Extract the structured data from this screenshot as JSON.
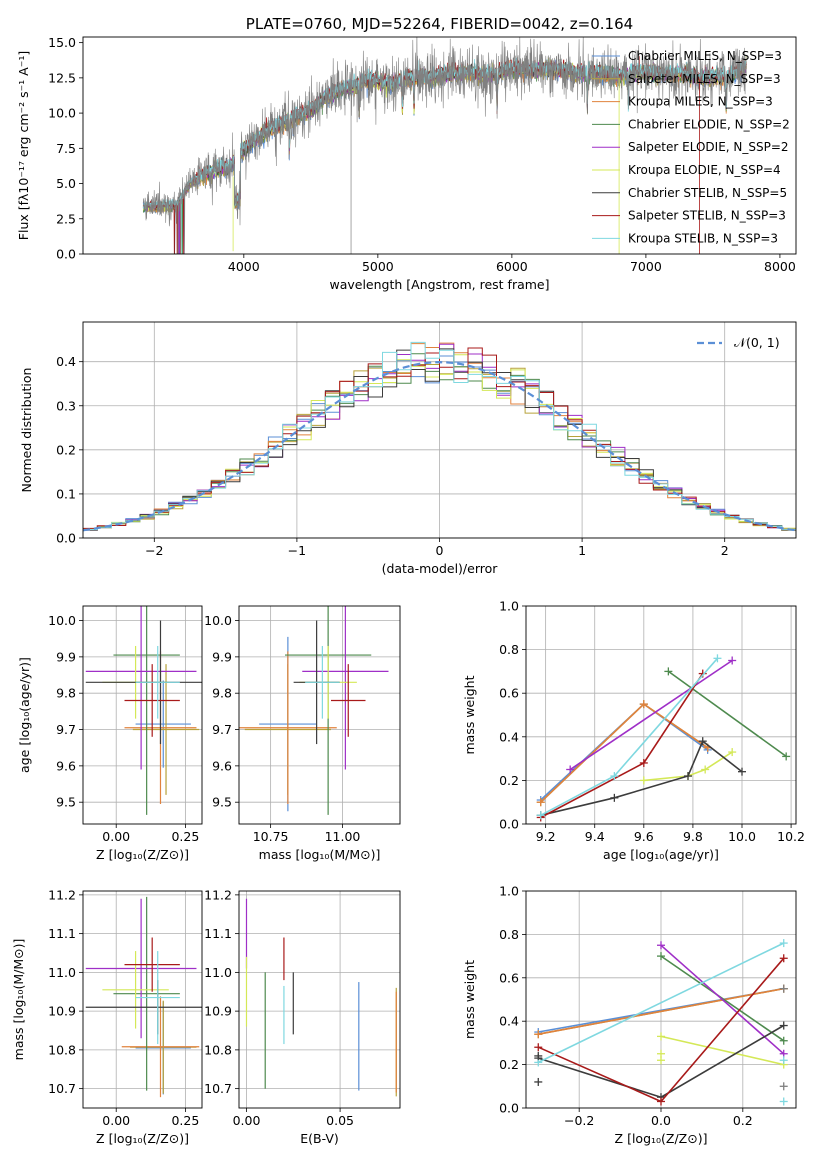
{
  "chart_data": [
    {
      "type": "line",
      "title": "PLATE=0760, MJD=52264, FIBERID=0042, z=0.164",
      "xlabel": "wavelength [Angstrom, rest frame]",
      "ylabel": "Flux [fλ10⁻¹⁷ erg cm⁻² s⁻¹ A⁻¹]",
      "xlim": [
        2800,
        8120
      ],
      "ylim": [
        0,
        15.4
      ],
      "xticks": [
        4000,
        5000,
        6000,
        7000,
        8000
      ],
      "yticks": [
        0.0,
        2.5,
        5.0,
        7.5,
        10.0,
        12.5,
        15.0
      ],
      "ytick_labels": [
        "0.0",
        "2.5",
        "5.0",
        "7.5",
        "10.0",
        "12.5",
        "15.0"
      ],
      "grid": false,
      "legend_position": "right",
      "data_spectrum": {
        "name": "",
        "color": "#808080",
        "x": [
          3250,
          3400,
          3500,
          3600,
          3700,
          3800,
          3900,
          4000,
          4100,
          4200,
          4300,
          4400,
          4500,
          4600,
          4700,
          4800,
          4900,
          5000,
          5100,
          5200,
          5300,
          5400,
          5500,
          5600,
          5700,
          5800,
          5900,
          6000,
          6100,
          6200,
          6300,
          6400,
          6500,
          6600,
          6700,
          6800,
          6900,
          7000,
          7100,
          7200,
          7300,
          7400,
          7500,
          7600,
          7700,
          7750
        ],
        "y": [
          3.3,
          3.4,
          3.4,
          5.0,
          5.6,
          6.0,
          6.2,
          7.4,
          8.2,
          8.9,
          9.3,
          9.8,
          10.2,
          11.0,
          11.6,
          11.8,
          12.3,
          12.3,
          12.0,
          12.4,
          12.6,
          12.5,
          12.8,
          12.8,
          12.9,
          12.7,
          12.8,
          13.2,
          13.0,
          13.1,
          13.1,
          13.0,
          12.8,
          12.9,
          12.8,
          12.6,
          12.9,
          12.9,
          12.8,
          12.7,
          12.8,
          12.4,
          12.6,
          12.5,
          13.0,
          13.4
        ]
      },
      "series": [
        {
          "name": "Chabrier MILES, N_SSP=3",
          "color": "#5b8fd6"
        },
        {
          "name": "Salpeter MILES, N_SSP=3",
          "color": "#b7a23a"
        },
        {
          "name": "Kroupa MILES, N_SSP=3",
          "color": "#e0823d"
        },
        {
          "name": "Chabrier ELODIE, N_SSP=2",
          "color": "#4e8a4e"
        },
        {
          "name": "Salpeter ELODIE, N_SSP=2",
          "color": "#9f2fc7"
        },
        {
          "name": "Kroupa ELODIE, N_SSP=4",
          "color": "#d4e857"
        },
        {
          "name": "Chabrier STELIB, N_SSP=5",
          "color": "#3c3c3c"
        },
        {
          "name": "Salpeter STELIB, N_SSP=3",
          "color": "#a81a1a"
        },
        {
          "name": "Kroupa STELIB, N_SSP=3",
          "color": "#7fd8e0"
        }
      ]
    },
    {
      "type": "line",
      "title": "",
      "xlabel": "(data-model)/error",
      "ylabel": "Normed distribution",
      "xlim": [
        -2.5,
        2.5
      ],
      "ylim": [
        0,
        0.49
      ],
      "xticks": [
        -2,
        -1,
        0,
        1,
        2
      ],
      "xtick_labels": [
        "−2",
        "−1",
        "0",
        "1",
        "2"
      ],
      "yticks": [
        0.0,
        0.1,
        0.2,
        0.3,
        0.4
      ],
      "ytick_labels": [
        "0.0",
        "0.1",
        "0.2",
        "0.3",
        "0.4"
      ],
      "grid": true,
      "legend_position": "top-right",
      "gaussian": {
        "name": "𝒩(0, 1)",
        "color": "#5b8fd6",
        "mean": 0,
        "std": 1
      },
      "hist_bin_width": 0.1
    },
    {
      "type": "scatter",
      "title": "",
      "xlabel": "Z [log₁₀(Z/Z⊙)]",
      "ylabel": "age  [log₁₀(age/yr)]",
      "xlim": [
        -0.12,
        0.31
      ],
      "ylim": [
        9.44,
        10.04
      ],
      "xticks": [
        0.0,
        0.25
      ],
      "xtick_labels": [
        "0.00",
        "0.25"
      ],
      "yticks": [
        9.5,
        9.6,
        9.7,
        9.8,
        9.9,
        10.0
      ],
      "ytick_labels": [
        "9.5",
        "9.6",
        "9.7",
        "9.8",
        "9.9",
        "10.0"
      ],
      "grid": true,
      "crosses": [
        {
          "color": "#5b8fd6",
          "x": 0.17,
          "xerr": 0.1,
          "y": 9.715,
          "yerr": 0.12
        },
        {
          "color": "#b7a23a",
          "x": 0.18,
          "xerr": 0.12,
          "y": 9.7,
          "yerr": 0.18
        },
        {
          "color": "#e0823d",
          "x": 0.16,
          "xerr": 0.13,
          "y": 9.705,
          "yerr": 0.21
        },
        {
          "color": "#4e8a4e",
          "x": 0.11,
          "xerr": 0.12,
          "y": 9.905,
          "yerr": 0.44
        },
        {
          "color": "#9f2fc7",
          "x": 0.09,
          "xerr": 0.2,
          "y": 9.86,
          "yerr": 0.27
        },
        {
          "color": "#d4e857",
          "x": 0.07,
          "xerr": 0.12,
          "y": 9.83,
          "yerr": 0.1
        },
        {
          "color": "#3c3c3c",
          "x": 0.16,
          "xerr": 0.27,
          "y": 9.83,
          "yerr": 0.17
        },
        {
          "color": "#a81a1a",
          "x": 0.13,
          "xerr": 0.1,
          "y": 9.78,
          "yerr": 0.1
        },
        {
          "color": "#7fd8e0",
          "x": 0.15,
          "xerr": 0.08,
          "y": 9.83,
          "yerr": 0.1
        }
      ]
    },
    {
      "type": "scatter",
      "title": "",
      "xlabel": "mass [log₁₀(M/M⊙)]",
      "ylabel": "",
      "xlim": [
        10.64,
        11.2
      ],
      "ylim": [
        9.44,
        10.04
      ],
      "xticks": [
        10.75,
        11.0
      ],
      "xtick_labels": [
        "10.75",
        "11.00"
      ],
      "yticks": [
        9.5,
        9.6,
        9.7,
        9.8,
        9.9,
        10.0
      ],
      "ytick_labels": [
        "9.5",
        "9.6",
        "9.7",
        "9.8",
        "9.9",
        "10.0"
      ],
      "grid": true,
      "crosses": [
        {
          "color": "#5b8fd6",
          "x": 10.81,
          "xerr": 0.1,
          "y": 9.715,
          "yerr": 0.24
        },
        {
          "color": "#b7a23a",
          "x": 10.81,
          "xerr": 0.15,
          "y": 9.7,
          "yerr": 0.18
        },
        {
          "color": "#e0823d",
          "x": 10.81,
          "xerr": 0.17,
          "y": 9.705,
          "yerr": 0.21
        },
        {
          "color": "#4e8a4e",
          "x": 10.95,
          "xerr": 0.15,
          "y": 9.905,
          "yerr": 0.44
        },
        {
          "color": "#9f2fc7",
          "x": 11.01,
          "xerr": 0.15,
          "y": 9.86,
          "yerr": 0.27
        },
        {
          "color": "#d4e857",
          "x": 10.95,
          "xerr": 0.1,
          "y": 9.83,
          "yerr": 0.1
        },
        {
          "color": "#3c3c3c",
          "x": 10.91,
          "xerr": 0.08,
          "y": 9.83,
          "yerr": 0.17
        },
        {
          "color": "#a81a1a",
          "x": 11.02,
          "xerr": 0.06,
          "y": 9.78,
          "yerr": 0.1
        },
        {
          "color": "#7fd8e0",
          "x": 10.93,
          "xerr": 0.06,
          "y": 9.83,
          "yerr": 0.1
        }
      ]
    },
    {
      "type": "line",
      "title": "",
      "xlabel": "age  [log₁₀(age/yr)]",
      "ylabel": "mass weight",
      "xlim": [
        9.12,
        10.22
      ],
      "ylim": [
        0.0,
        1.0
      ],
      "xticks": [
        9.2,
        9.4,
        9.6,
        9.8,
        10.0,
        10.2
      ],
      "xtick_labels": [
        "9.2",
        "9.4",
        "9.6",
        "9.8",
        "10.0",
        "10.2"
      ],
      "yticks": [
        0.0,
        0.2,
        0.4,
        0.6,
        0.8,
        1.0
      ],
      "ytick_labels": [
        "0.0",
        "0.2",
        "0.4",
        "0.6",
        "0.8",
        "1.0"
      ],
      "grid": true,
      "series": [
        {
          "color": "#5b8fd6",
          "x": [
            9.18,
            9.6,
            9.86
          ],
          "y": [
            0.11,
            0.55,
            0.34
          ]
        },
        {
          "color": "#b7a23a",
          "x": [
            9.18,
            9.6,
            9.86
          ],
          "y": [
            0.1,
            0.55,
            0.35
          ]
        },
        {
          "color": "#e0823d",
          "x": [
            9.18,
            9.6,
            9.86
          ],
          "y": [
            0.1,
            0.55,
            0.35
          ]
        },
        {
          "color": "#4e8a4e",
          "x": [
            9.7,
            10.18
          ],
          "y": [
            0.7,
            0.31
          ]
        },
        {
          "color": "#9f2fc7",
          "x": [
            9.3,
            9.96
          ],
          "y": [
            0.25,
            0.75
          ]
        },
        {
          "color": "#d4e857",
          "x": [
            9.6,
            9.78,
            9.85,
            9.96
          ],
          "y": [
            0.2,
            0.22,
            0.25,
            0.33
          ]
        },
        {
          "color": "#3c3c3c",
          "x": [
            9.18,
            9.48,
            9.78,
            9.84,
            10.0
          ],
          "y": [
            0.04,
            0.12,
            0.22,
            0.38,
            0.24
          ]
        },
        {
          "color": "#a81a1a",
          "x": [
            9.18,
            9.6,
            9.84
          ],
          "y": [
            0.03,
            0.28,
            0.69
          ]
        },
        {
          "color": "#7fd8e0",
          "x": [
            9.18,
            9.48,
            9.9
          ],
          "y": [
            0.04,
            0.22,
            0.76
          ]
        }
      ]
    },
    {
      "type": "scatter",
      "title": "",
      "xlabel": "Z [log₁₀(Z/Z⊙)]",
      "ylabel": "mass [log₁₀(M/M⊙)]",
      "xlim": [
        -0.12,
        0.31
      ],
      "ylim": [
        10.65,
        11.21
      ],
      "xticks": [
        0.0,
        0.25
      ],
      "xtick_labels": [
        "0.00",
        "0.25"
      ],
      "yticks": [
        10.7,
        10.8,
        10.9,
        11.0,
        11.1,
        11.2
      ],
      "ytick_labels": [
        "10.7",
        "10.8",
        "10.9",
        "11.0",
        "11.1",
        "11.2"
      ],
      "grid": true,
      "crosses": [
        {
          "color": "#5b8fd6",
          "x": 0.17,
          "xerr": 0.1,
          "y": 10.805,
          "yerr": 0.12
        },
        {
          "color": "#b7a23a",
          "x": 0.17,
          "xerr": 0.12,
          "y": 10.807,
          "yerr": 0.12
        },
        {
          "color": "#e0823d",
          "x": 0.16,
          "xerr": 0.14,
          "y": 10.808,
          "yerr": 0.13
        },
        {
          "color": "#4e8a4e",
          "x": 0.11,
          "xerr": 0.12,
          "y": 10.945,
          "yerr": 0.25
        },
        {
          "color": "#9f2fc7",
          "x": 0.09,
          "xerr": 0.2,
          "y": 11.01,
          "yerr": 0.18
        },
        {
          "color": "#d4e857",
          "x": 0.07,
          "xerr": 0.12,
          "y": 10.955,
          "yerr": 0.1
        },
        {
          "color": "#3c3c3c",
          "x": 0.15,
          "xerr": 0.26,
          "y": 10.91,
          "yerr": 0.07
        },
        {
          "color": "#a81a1a",
          "x": 0.13,
          "xerr": 0.1,
          "y": 11.02,
          "yerr": 0.07
        },
        {
          "color": "#7fd8e0",
          "x": 0.15,
          "xerr": 0.08,
          "y": 10.935,
          "yerr": 0.12
        }
      ]
    },
    {
      "type": "scatter",
      "title": "",
      "xlabel": "E(B-V)",
      "ylabel": "",
      "xlim": [
        -0.004,
        0.082
      ],
      "ylim": [
        10.65,
        11.21
      ],
      "xticks": [
        0.0,
        0.05
      ],
      "xtick_labels": [
        "0.00",
        "0.05"
      ],
      "yticks": [
        10.7,
        10.8,
        10.9,
        11.0,
        11.1,
        11.2
      ],
      "ytick_labels": [
        "10.7",
        "10.8",
        "10.9",
        "11.0",
        "11.1",
        "11.2"
      ],
      "grid": true,
      "crosses": [
        {
          "color": "#5b8fd6",
          "x": 0.06,
          "xerr": 0.0,
          "y": 10.835,
          "yerr": 0.14
        },
        {
          "color": "#b7a23a",
          "x": 0.08,
          "xerr": 0.0,
          "y": 10.82,
          "yerr": 0.14
        },
        {
          "color": "#e0823d",
          "x": 0.08,
          "xerr": 0.0,
          "y": 10.82,
          "yerr": 0.13
        },
        {
          "color": "#4e8a4e",
          "x": 0.01,
          "xerr": 0.0,
          "y": 10.85,
          "yerr": 0.15
        },
        {
          "color": "#9f2fc7",
          "x": 0.0,
          "xerr": 0.0,
          "y": 11.1,
          "yerr": 0.09
        },
        {
          "color": "#d4e857",
          "x": 0.0,
          "xerr": 0.0,
          "y": 10.95,
          "yerr": 0.09
        },
        {
          "color": "#3c3c3c",
          "x": 0.025,
          "xerr": 0.0,
          "y": 10.92,
          "yerr": 0.08
        },
        {
          "color": "#a81a1a",
          "x": 0.02,
          "xerr": 0.0,
          "y": 11.035,
          "yerr": 0.055
        },
        {
          "color": "#7fd8e0",
          "x": 0.02,
          "xerr": 0.0,
          "y": 10.89,
          "yerr": 0.075
        }
      ]
    },
    {
      "type": "line",
      "title": "",
      "xlabel": "Z [log₁₀(Z/Z⊙)]",
      "ylabel": "mass weight",
      "xlim": [
        -0.33,
        0.33
      ],
      "ylim": [
        0.0,
        1.0
      ],
      "xticks": [
        -0.2,
        0.0,
        0.2
      ],
      "xtick_labels": [
        "−0.2",
        "0.0",
        "0.2"
      ],
      "yticks": [
        0.0,
        0.2,
        0.4,
        0.6,
        0.8,
        1.0
      ],
      "ytick_labels": [
        "0.0",
        "0.2",
        "0.4",
        "0.6",
        "0.8",
        "1.0"
      ],
      "grid": true,
      "series": [
        {
          "color": "#5b8fd6",
          "x": [
            -0.3,
            0.3
          ],
          "y": [
            0.35,
            0.55
          ]
        },
        {
          "color": "#b7a23a",
          "x": [
            -0.3,
            0.3
          ],
          "y": [
            0.34,
            0.55
          ]
        },
        {
          "color": "#e0823d",
          "x": [
            -0.3,
            0.3
          ],
          "y": [
            0.34,
            0.55
          ]
        },
        {
          "color": "#4e8a4e",
          "x": [
            0.0,
            0.3
          ],
          "y": [
            0.7,
            0.31
          ]
        },
        {
          "color": "#9f2fc7",
          "x": [
            0.0,
            0.3
          ],
          "y": [
            0.75,
            0.25
          ]
        },
        {
          "color": "#d4e857",
          "x": [
            0.0,
            0.3
          ],
          "y": [
            0.33,
            0.2
          ]
        },
        {
          "color": "#3c3c3c",
          "x": [
            -0.3,
            0.0,
            0.3
          ],
          "y": [
            0.23,
            0.05,
            0.38
          ]
        },
        {
          "color": "#a81a1a",
          "x": [
            -0.3,
            0.0,
            0.3
          ],
          "y": [
            0.28,
            0.03,
            0.69
          ]
        },
        {
          "color": "#7fd8e0",
          "x": [
            -0.3,
            0.3
          ],
          "y": [
            0.21,
            0.76
          ]
        }
      ],
      "extra_points": [
        {
          "color": "#d4e857",
          "x": [
            0.0,
            0.0
          ],
          "y": [
            0.22,
            0.25
          ]
        },
        {
          "color": "#3c3c3c",
          "x": [
            -0.3,
            -0.3
          ],
          "y": [
            0.12,
            0.24
          ]
        },
        {
          "color": "#7fd8e0",
          "x": [
            0.3,
            0.3
          ],
          "y": [
            0.03,
            0.22
          ]
        },
        {
          "color": "#808080",
          "x": [
            0.3,
            0.3
          ],
          "y": [
            0.1,
            0.55
          ]
        }
      ]
    }
  ]
}
